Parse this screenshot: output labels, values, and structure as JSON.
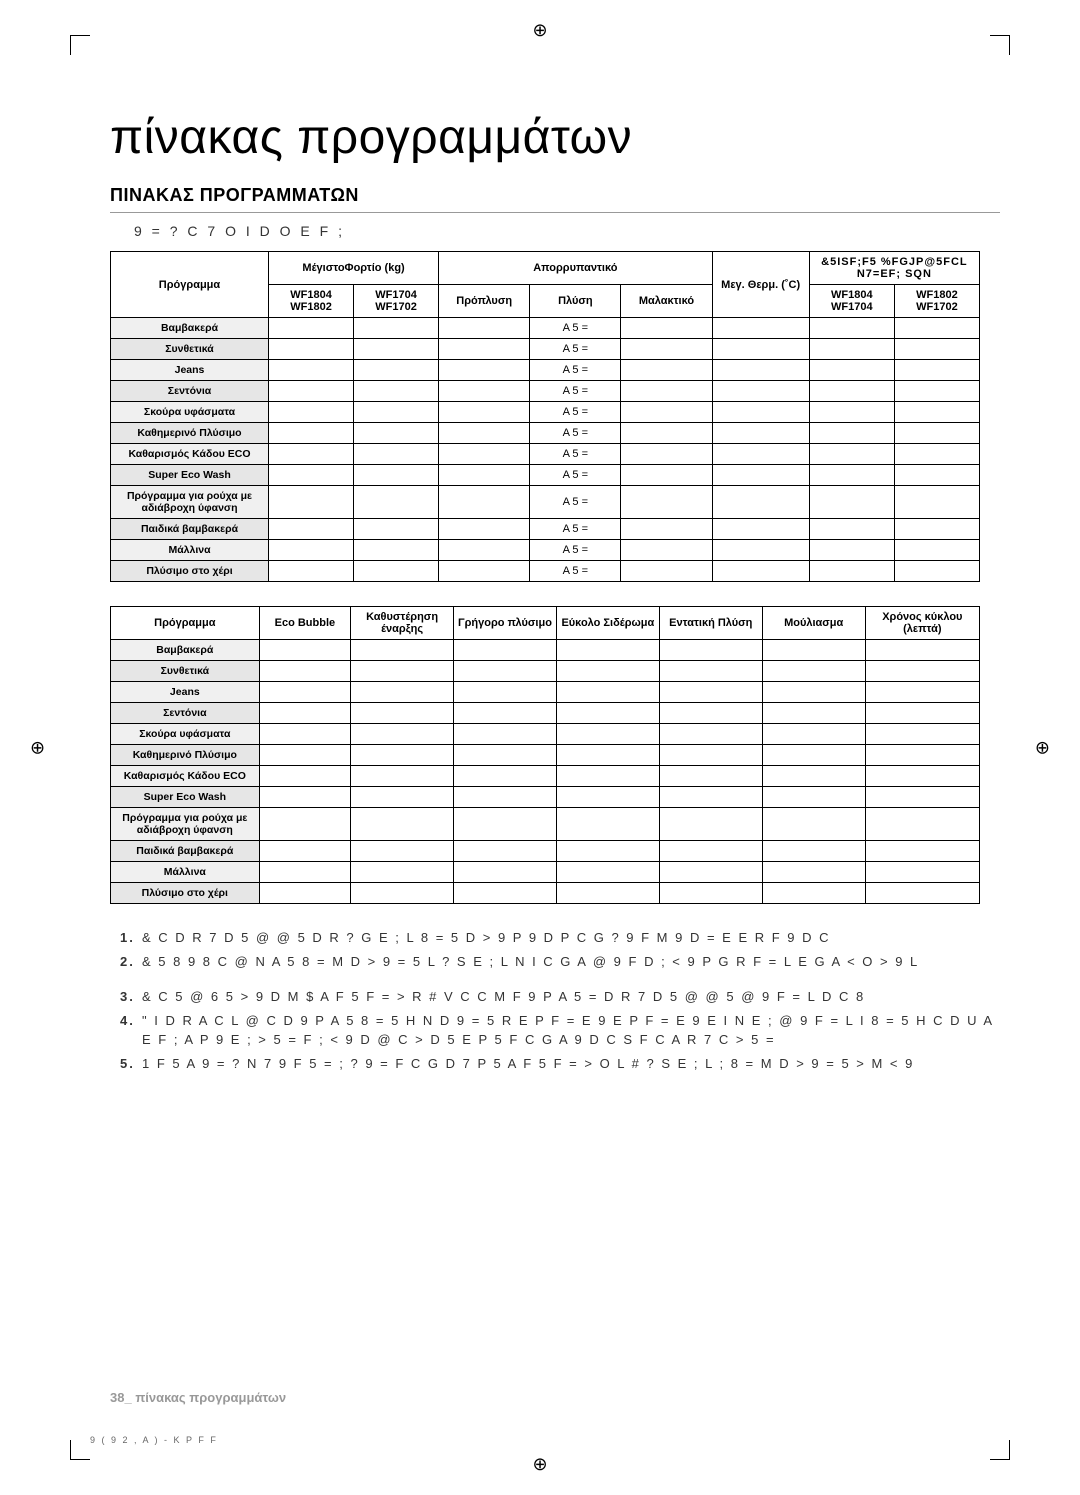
{
  "title": "πίνακας προγραμμάτων",
  "section_heading": "ΠΙΝΑΚΑΣ ΠΡΟΓΡΑΜΜΑΤΩΝ",
  "subtext": "9  = ? C 7 O   I D O E F ;",
  "table1": {
    "col_program": "Πρόγραμμα",
    "col_maxload": "ΜέγιστοΦορτίο (kg)",
    "col_detergent": "Απορρυπαντικό",
    "col_maxtemp": "Μεγ. Θερμ. (˚C)",
    "col_spin": "&5ISF;F5 %FGJP@5FCL   N7=EF;    SQN",
    "sub_wf1804_02": "WF1804\nWF1802",
    "sub_wf1704_02": "WF1704\nWF1702",
    "sub_prewash": "Πρόπλυση",
    "sub_wash": "Πλύση",
    "sub_softener": "Μαλακτικό",
    "sub_spin1": "WF1804\nWF1704",
    "sub_spin2": "WF1802\nWF1702",
    "wash_value": "A 5 =",
    "programs": [
      "Βαμβακερά",
      "Συνθετικά",
      "Jeans",
      "Σεντόνια",
      "Σκούρα υφάσματα",
      "Καθημερινό Πλύσιμο",
      "Καθαρισμός Κάδου ECO",
      "Super Eco Wash",
      "Πρόγραμμα για ρούχα με αδιάβροχη ύφανση",
      "Παιδικά βαμβακερά",
      "Μάλλινα",
      "Πλύσιμο στο χέρι"
    ]
  },
  "table2": {
    "col_program": "Πρόγραμμα",
    "col_eco": "Eco Bubble",
    "col_delay": "Καθυστέρηση έναρξης",
    "col_quick": "Γρήγορο πλύσιμο",
    "col_easy": "Εύκολο Σιδέρωμα",
    "col_intensive": "Εντατική Πλύση",
    "col_soak": "Μούλιασμα",
    "col_time": "Χρόνος κύκλου (λεπτά)",
    "programs": [
      "Βαμβακερά",
      "Συνθετικά",
      "Jeans",
      "Σεντόνια",
      "Σκούρα υφάσματα",
      "Καθημερινό Πλύσιμο",
      "Καθαρισμός Κάδου ECO",
      "Super Eco Wash",
      "Πρόγραμμα για ρούχα με αδιάβροχη ύφανση",
      "Παιδικά βαμβακερά",
      "Μάλλινα",
      "Πλύσιμο στο χέρι"
    ]
  },
  "notes": [
    "& C   D R 7 D 5 @ @ 5   D R  ? G E ; L  8 = 5 D > 9 P   9 D P  C G     ? 9  F M   9 D = E E R F 9 D C",
    "& 5  8 9 8 C @ N A 5  8 = M D > 9 = 5 L   ? S E ; L  N I C G A  @ 9 F D ; < 9 P  G  R  F = L  E G A < O > 9 L",
    "& C   5 @ 6 5 > 9 D M     $   A F 5 F = > R  # V C C M F  9 P A 5 =   D R 7 D 5 @ @ 5  @ 9  F = L   D C 8",
    "\"  I D R A C L  @  C D 9 P  A 5  8 = 5 H N D 9 =  5  R  E  P F =  E 9  E  P F =  E 9  E I N E ;  @ 9  F = L  I 8 = 5 H C D U A  E F ; A   P 9 E ;  > 5 =  F ;  < 9 D @ C > D 5 E P 5  F C G  A 9 D C S   F C A  R 7 C  > 5 =",
    "1 F 5 A  9  = ? N 7 9 F 5 =  ;  ? 9 = F C G D 7 P 5   A F 5 F = > O L  # ? S E ; L   ;  8 = M D > 9 = 5  > M < 9"
  ],
  "footer_page": "38_",
  "footer_text": "πίνακας προγραμμάτων",
  "tiny_footer": "9 (    9 2        ,    A ) -  K P F F"
}
